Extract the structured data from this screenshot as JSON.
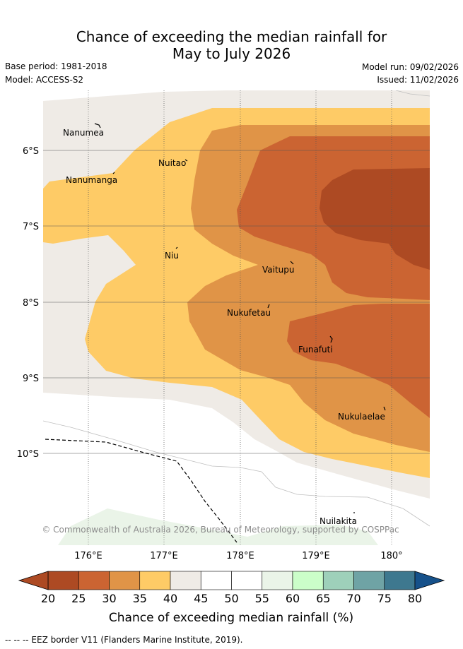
{
  "title_line1": "Chance of exceeding the median rainfall for",
  "title_line2": "May to July 2026",
  "base_period": "Base period: 1981-2018",
  "model": "Model: ACCESS-S2",
  "model_run": "Model run: 09/02/2026",
  "issued": "Issued: 11/02/2026",
  "copyright": "© Commonwealth of Australia 2026, Bureau of Meteorology, supported by COSPPac",
  "lat_labels": [
    "6°S",
    "7°S",
    "8°S",
    "9°S",
    "10°S"
  ],
  "lon_labels": [
    "176°E",
    "177°E",
    "178°E",
    "179°E",
    "180°"
  ],
  "places": [
    "Nanumea",
    "Nuitao",
    "Nanumanga",
    "Niu",
    "Vaitupu",
    "Nukufetau",
    "Funafuti",
    "Nukulaelae",
    "Nuilakita"
  ],
  "colorbar": {
    "ticks": [
      "20",
      "25",
      "30",
      "35",
      "40",
      "45",
      "50",
      "55",
      "60",
      "65",
      "70",
      "75",
      "80"
    ],
    "colors": [
      "#ad4a23",
      "#cb6432",
      "#e09447",
      "#fecb66",
      "#efebe6",
      "#ffffff",
      "#ffffff",
      "#eaf4e8",
      "#cbfec9",
      "#9ed0ba",
      "#6fa3a5",
      "#3e788f",
      "#16518a"
    ],
    "label": "Chance of exceeding median rainfall (%)"
  },
  "footnote": "-- -- -- EEZ border V11 (Flanders Marine Institute, 2019)."
}
